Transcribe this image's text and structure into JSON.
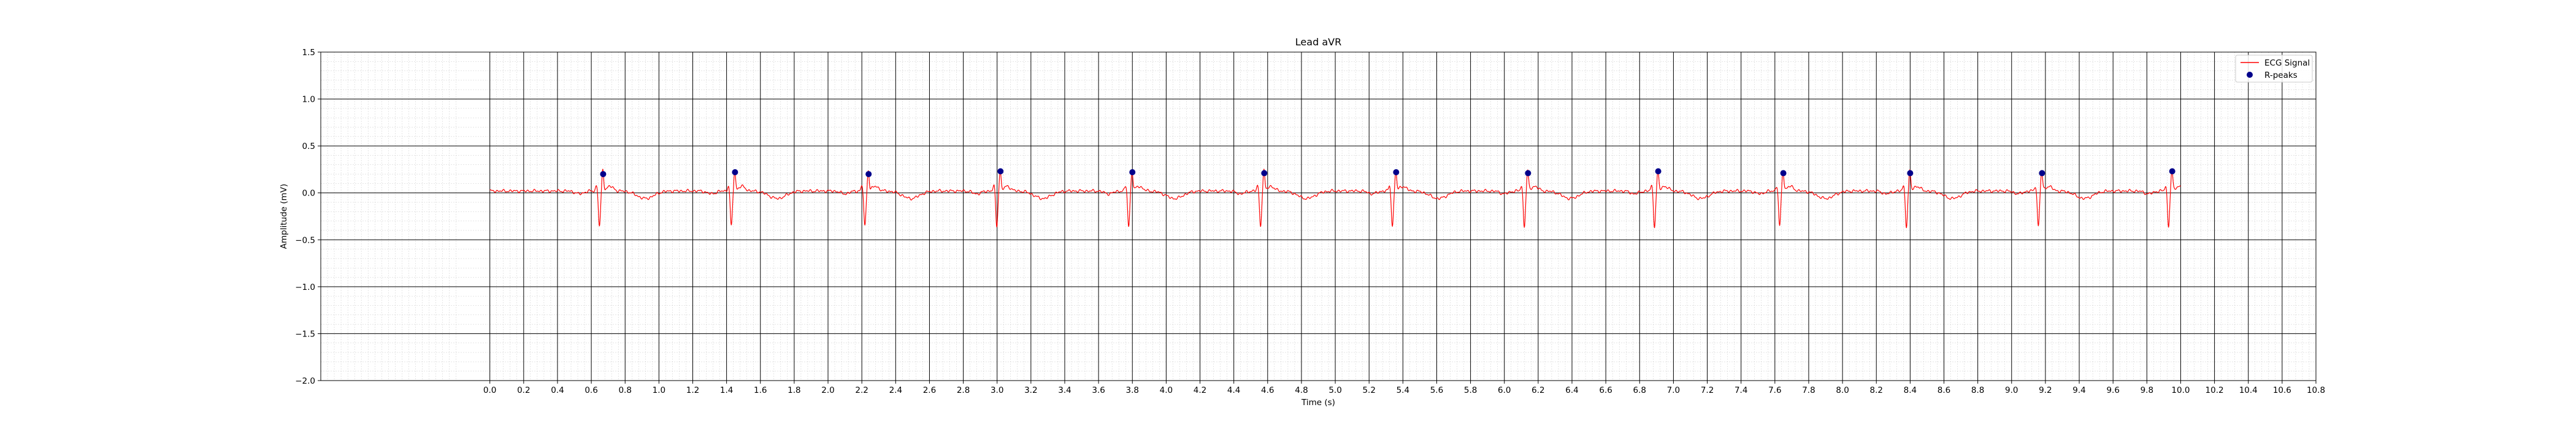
{
  "chart_data": {
    "type": "line",
    "title": "Lead aVR",
    "xlabel": "Time (s)",
    "ylabel": "Amplitude (mV)",
    "xlim": [
      -1.0,
      10.8
    ],
    "ylim": [
      -2.0,
      1.5
    ],
    "x_ticks": [
      0.0,
      0.2,
      0.4,
      0.6,
      0.8,
      1.0,
      1.2,
      1.4,
      1.6,
      1.8,
      2.0,
      2.2,
      2.4,
      2.6,
      2.8,
      3.0,
      3.2,
      3.4,
      3.6,
      3.8,
      4.0,
      4.2,
      4.4,
      4.6,
      4.8,
      5.0,
      5.2,
      5.4,
      5.6,
      5.8,
      6.0,
      6.2,
      6.4,
      6.6,
      6.8,
      7.0,
      7.2,
      7.4,
      7.6,
      7.8,
      8.0,
      8.2,
      8.4,
      8.6,
      8.8,
      9.0,
      9.2,
      9.4,
      9.6,
      9.8,
      10.0,
      10.2,
      10.4,
      10.6,
      10.8
    ],
    "x_tick_labels": [
      "0.0",
      "0.2",
      "0.4",
      "0.6",
      "0.8",
      "1.0",
      "1.2",
      "1.4",
      "1.6",
      "1.8",
      "2.0",
      "2.2",
      "2.4",
      "2.6",
      "2.8",
      "3.0",
      "3.2",
      "3.4",
      "3.6",
      "3.8",
      "4.0",
      "4.2",
      "4.4",
      "4.6",
      "4.8",
      "5.0",
      "5.2",
      "5.4",
      "5.6",
      "5.8",
      "6.0",
      "6.2",
      "6.4",
      "6.6",
      "6.8",
      "7.0",
      "7.2",
      "7.4",
      "7.6",
      "7.8",
      "8.0",
      "8.2",
      "8.4",
      "8.6",
      "8.8",
      "9.0",
      "9.2",
      "9.4",
      "9.6",
      "9.8",
      "10.0",
      "10.2",
      "10.4",
      "10.6",
      "10.8"
    ],
    "y_ticks": [
      -2.0,
      -1.5,
      -1.0,
      -0.5,
      0.0,
      0.5,
      1.0,
      1.5
    ],
    "y_tick_labels": [
      "−2.0",
      "−1.5",
      "−1.0",
      "−0.5",
      "0.0",
      "0.5",
      "1.0",
      "1.5"
    ],
    "grid": {
      "major": true,
      "minor": true,
      "major_x_step": 0.2,
      "major_y_step": 0.5,
      "minor_x_step": 0.04,
      "minor_y_step": 0.1,
      "major_color": "#000000",
      "minor_color": "#cccccc"
    },
    "legend": {
      "placement": "top-right",
      "entries": [
        "ECG Signal",
        "R-peaks"
      ]
    },
    "series": [
      {
        "name": "ECG Signal",
        "kind": "line",
        "color": "#ff0000",
        "x_start": 0.0,
        "x_end": 10.0,
        "baseline": 0.02,
        "beat_times": [
          0.66,
          1.44,
          2.23,
          3.01,
          3.79,
          4.57,
          5.35,
          6.13,
          6.9,
          7.64,
          8.39,
          9.17,
          9.94
        ],
        "q_depth": -0.38,
        "r_height": 0.22,
        "t_wave": -0.08
      },
      {
        "name": "R-peaks",
        "kind": "scatter",
        "color": "#00008b",
        "x": [
          0.67,
          1.45,
          2.24,
          3.02,
          3.8,
          4.58,
          5.36,
          6.14,
          6.91,
          7.65,
          8.4,
          9.18,
          9.95
        ],
        "y": [
          0.2,
          0.22,
          0.2,
          0.23,
          0.22,
          0.21,
          0.22,
          0.21,
          0.23,
          0.21,
          0.21,
          0.21,
          0.23
        ]
      }
    ]
  }
}
